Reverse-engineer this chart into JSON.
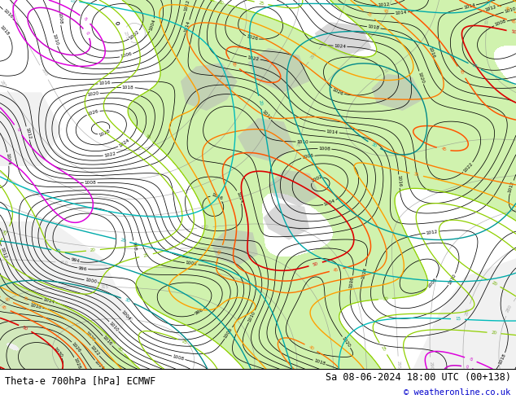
{
  "title_left": "Theta-e 700hPa [hPa] ECMWF",
  "title_right": "Sa 08-06-2024 18:00 UTC (00+138)",
  "copyright": "© weatheronline.co.uk",
  "bg_color": "#ffffff",
  "map_bg": "#f5f5f5",
  "figsize": [
    6.34,
    4.9
  ],
  "dpi": 100,
  "bottom_bar_color": "#ffffff",
  "copyright_color": "#0000cc",
  "label_color": "#000000",
  "green_fill": "#c8f0a0",
  "gray_fill": "#b8b8b8",
  "light_gray": "#d8d8d8"
}
